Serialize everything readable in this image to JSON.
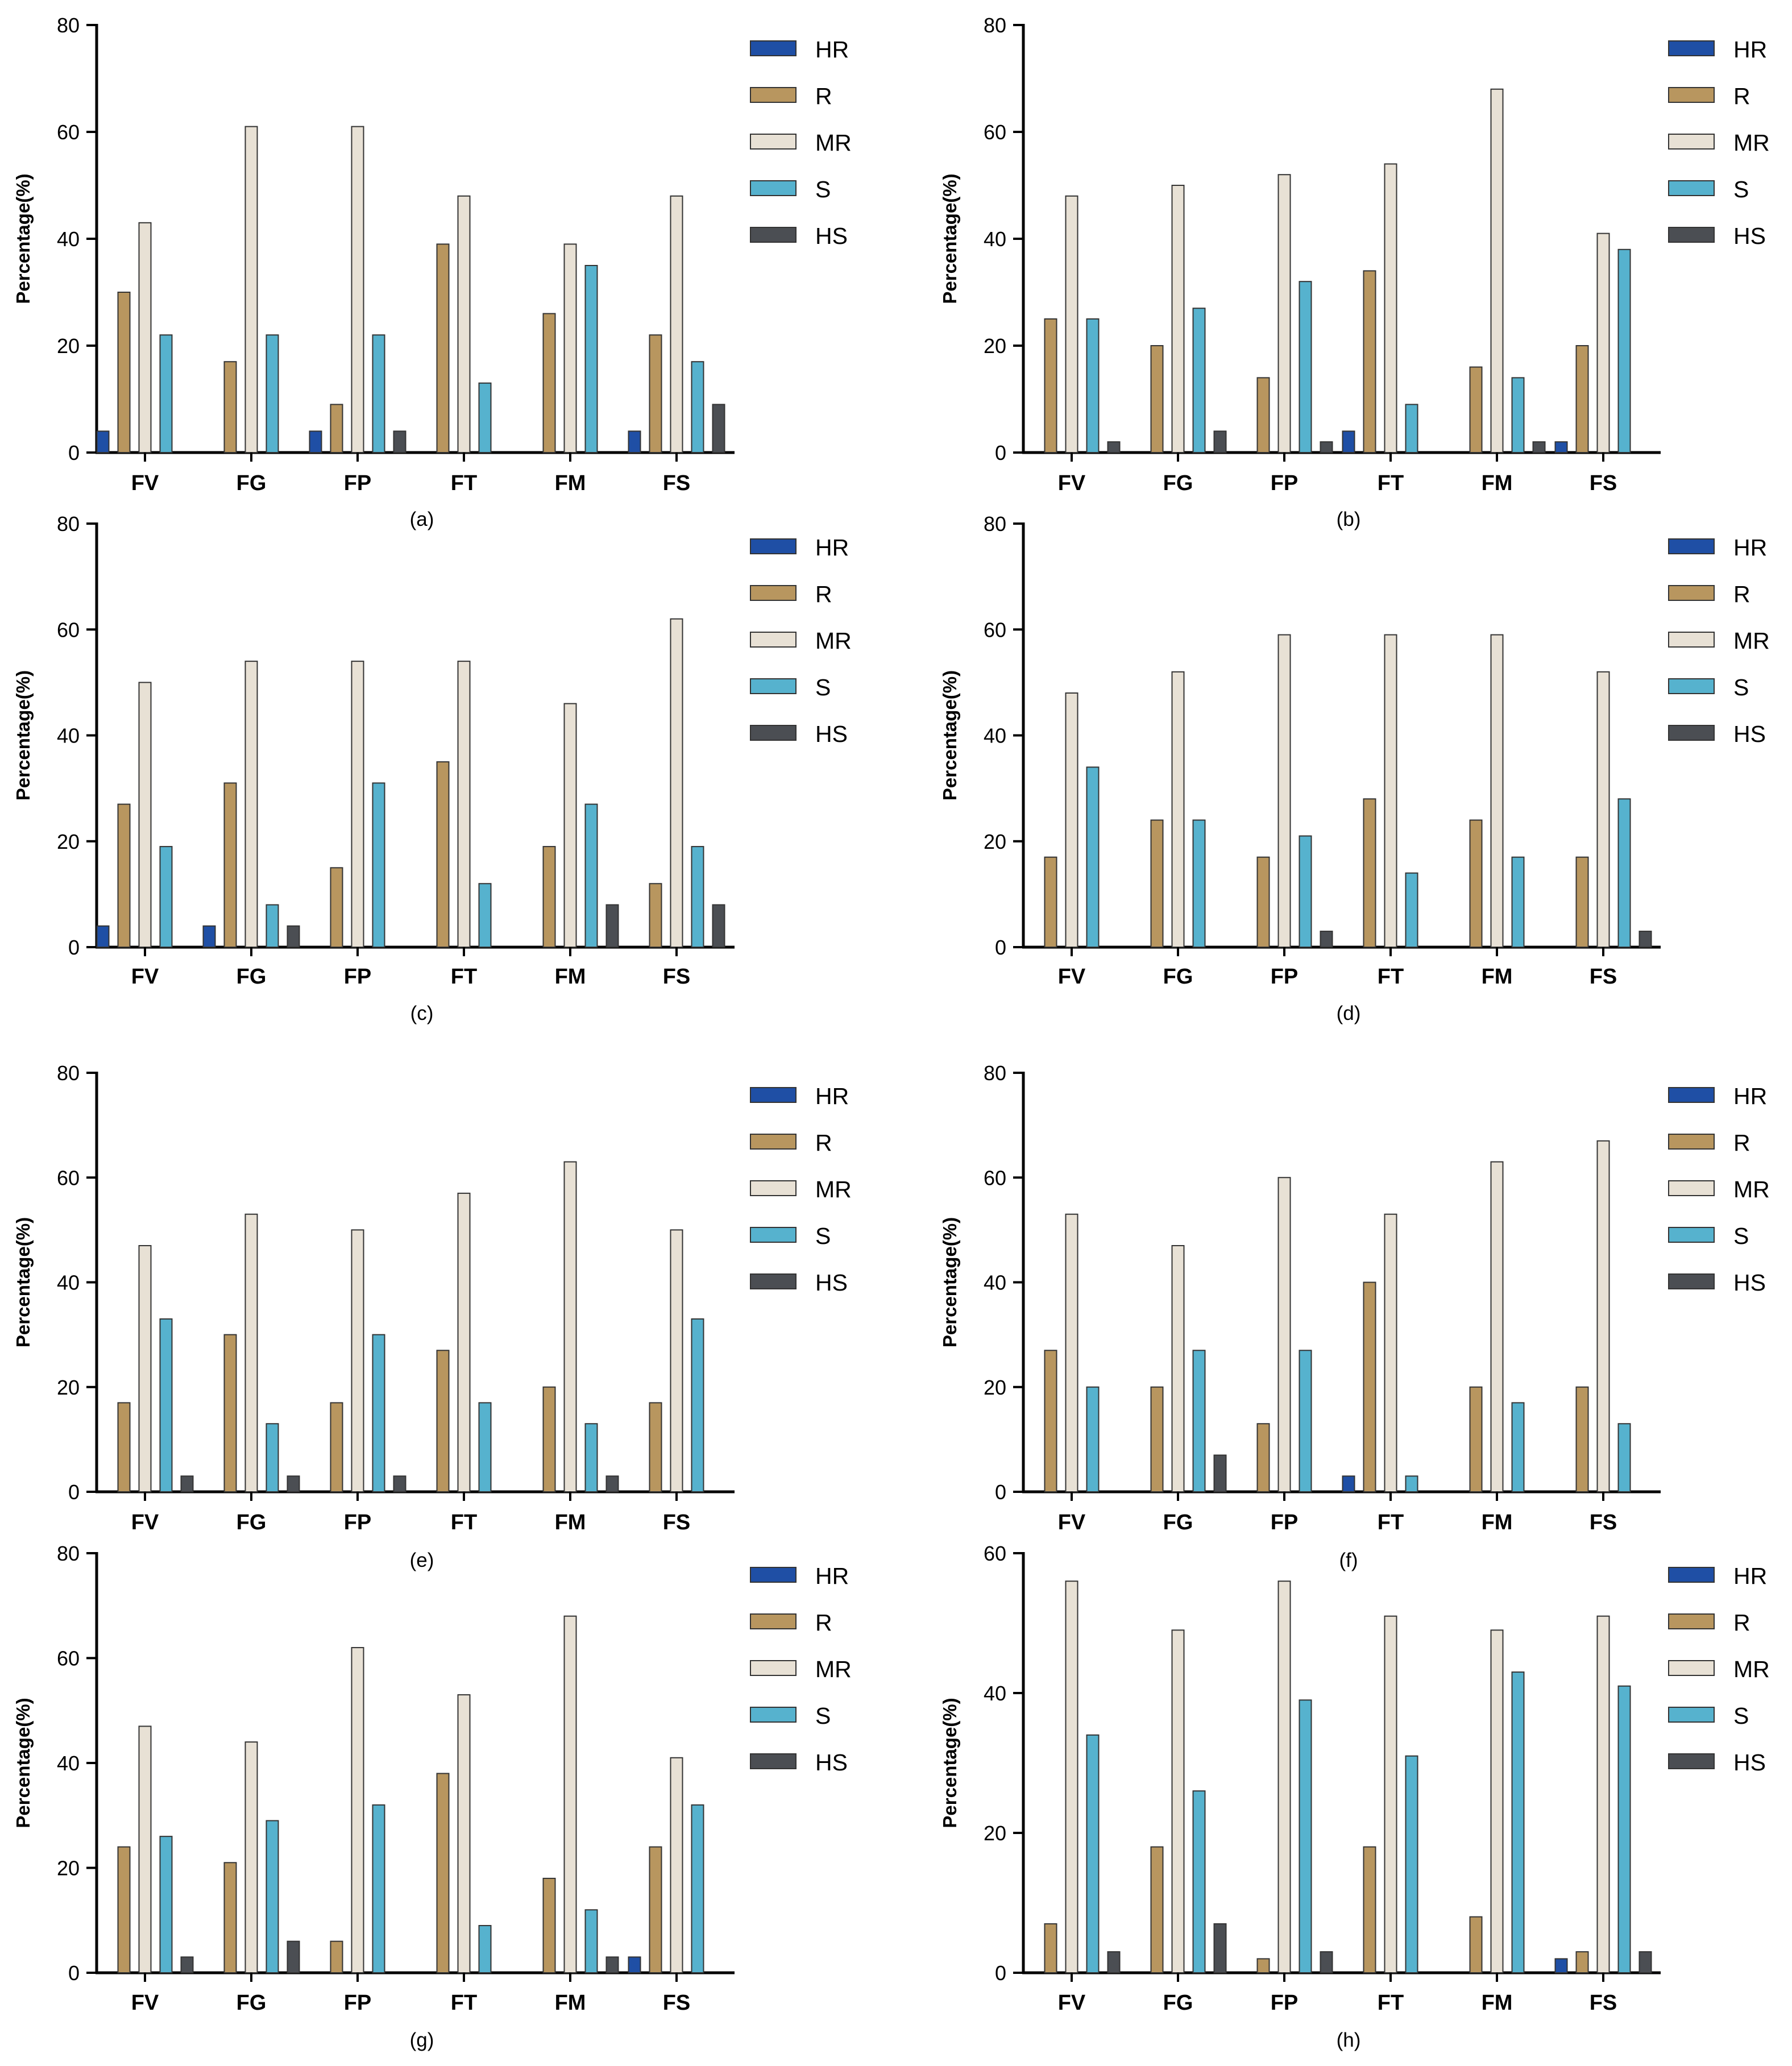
{
  "figure": {
    "legend_labels": [
      "HR",
      "R",
      "MR",
      "S",
      "HS"
    ],
    "colors": {
      "HR": "#1f4fa5",
      "R": "#b8965f",
      "MR": "#e8e1d5",
      "S": "#56b2ce",
      "HS": "#4b4e53",
      "outline": "#333333",
      "axis": "#000000"
    }
  },
  "chart_data": [
    {
      "type": "bar",
      "caption": "(a)",
      "categories": [
        "FV",
        "FG",
        "FP",
        "FT",
        "FM",
        "FS"
      ],
      "ylabel": "Percentage(%)",
      "ylim": [
        0,
        80
      ],
      "yticks": [
        0,
        20,
        40,
        60,
        80
      ],
      "legend": "top-right",
      "series": [
        {
          "name": "HR",
          "values": [
            4,
            0,
            4,
            0,
            0,
            4
          ]
        },
        {
          "name": "R",
          "values": [
            30,
            17,
            9,
            39,
            26,
            22
          ]
        },
        {
          "name": "MR",
          "values": [
            43,
            61,
            61,
            48,
            39,
            48
          ]
        },
        {
          "name": "S",
          "values": [
            22,
            22,
            22,
            13,
            35,
            17
          ]
        },
        {
          "name": "HS",
          "values": [
            0,
            0,
            4,
            0,
            0,
            9
          ]
        }
      ]
    },
    {
      "type": "bar",
      "caption": "(b)",
      "categories": [
        "FV",
        "FG",
        "FP",
        "FT",
        "FM",
        "FS"
      ],
      "ylabel": "Percentage(%)",
      "ylim": [
        0,
        80
      ],
      "yticks": [
        0,
        20,
        40,
        60,
        80
      ],
      "legend": "top-right",
      "series": [
        {
          "name": "HR",
          "values": [
            0,
            0,
            0,
            4,
            0,
            2
          ]
        },
        {
          "name": "R",
          "values": [
            25,
            20,
            14,
            34,
            16,
            20
          ]
        },
        {
          "name": "MR",
          "values": [
            48,
            50,
            52,
            54,
            68,
            41
          ]
        },
        {
          "name": "S",
          "values": [
            25,
            27,
            32,
            9,
            14,
            38
          ]
        },
        {
          "name": "HS",
          "values": [
            2,
            4,
            2,
            0,
            2,
            0
          ]
        }
      ]
    },
    {
      "type": "bar",
      "caption": "(c)",
      "categories": [
        "FV",
        "FG",
        "FP",
        "FT",
        "FM",
        "FS"
      ],
      "ylabel": "Percentage(%)",
      "ylim": [
        0,
        80
      ],
      "yticks": [
        0,
        20,
        40,
        60,
        80
      ],
      "legend": "top-right",
      "series": [
        {
          "name": "HR",
          "values": [
            4,
            4,
            0,
            0,
            0,
            0
          ]
        },
        {
          "name": "R",
          "values": [
            27,
            31,
            15,
            35,
            19,
            12
          ]
        },
        {
          "name": "MR",
          "values": [
            50,
            54,
            54,
            54,
            46,
            62
          ]
        },
        {
          "name": "S",
          "values": [
            19,
            8,
            31,
            12,
            27,
            19
          ]
        },
        {
          "name": "HS",
          "values": [
            0,
            4,
            0,
            0,
            8,
            8
          ]
        }
      ]
    },
    {
      "type": "bar",
      "caption": "(d)",
      "categories": [
        "FV",
        "FG",
        "FP",
        "FT",
        "FM",
        "FS"
      ],
      "ylabel": "Percentage(%)",
      "ylim": [
        0,
        80
      ],
      "yticks": [
        0,
        20,
        40,
        60,
        80
      ],
      "legend": "top-right",
      "series": [
        {
          "name": "HR",
          "values": [
            0,
            0,
            0,
            0,
            0,
            0
          ]
        },
        {
          "name": "R",
          "values": [
            17,
            24,
            17,
            28,
            24,
            17
          ]
        },
        {
          "name": "MR",
          "values": [
            48,
            52,
            59,
            59,
            59,
            52
          ]
        },
        {
          "name": "S",
          "values": [
            34,
            24,
            21,
            14,
            17,
            28
          ]
        },
        {
          "name": "HS",
          "values": [
            0,
            0,
            3,
            0,
            0,
            3
          ]
        }
      ]
    },
    {
      "type": "bar",
      "caption": "(e)",
      "categories": [
        "FV",
        "FG",
        "FP",
        "FT",
        "FM",
        "FS"
      ],
      "ylabel": "Percentage(%)",
      "ylim": [
        0,
        80
      ],
      "yticks": [
        0,
        20,
        40,
        60,
        80
      ],
      "legend": "top-right",
      "series": [
        {
          "name": "HR",
          "values": [
            0,
            0,
            0,
            0,
            0,
            0
          ]
        },
        {
          "name": "R",
          "values": [
            17,
            30,
            17,
            27,
            20,
            17
          ]
        },
        {
          "name": "MR",
          "values": [
            47,
            53,
            50,
            57,
            63,
            50
          ]
        },
        {
          "name": "S",
          "values": [
            33,
            13,
            30,
            17,
            13,
            33
          ]
        },
        {
          "name": "HS",
          "values": [
            3,
            3,
            3,
            0,
            3,
            0
          ]
        }
      ]
    },
    {
      "type": "bar",
      "caption": "(f)",
      "categories": [
        "FV",
        "FG",
        "FP",
        "FT",
        "FM",
        "FS"
      ],
      "ylabel": "Percentage(%)",
      "ylim": [
        0,
        80
      ],
      "yticks": [
        0,
        20,
        40,
        60,
        80
      ],
      "legend": "top-right",
      "series": [
        {
          "name": "HR",
          "values": [
            0,
            0,
            0,
            3,
            0,
            0
          ]
        },
        {
          "name": "R",
          "values": [
            27,
            20,
            13,
            40,
            20,
            20
          ]
        },
        {
          "name": "MR",
          "values": [
            53,
            47,
            60,
            53,
            63,
            67
          ]
        },
        {
          "name": "S",
          "values": [
            20,
            27,
            27,
            3,
            17,
            13
          ]
        },
        {
          "name": "HS",
          "values": [
            0,
            7,
            0,
            0,
            0,
            0
          ]
        }
      ]
    },
    {
      "type": "bar",
      "caption": "(g)",
      "categories": [
        "FV",
        "FG",
        "FP",
        "FT",
        "FM",
        "FS"
      ],
      "ylabel": "Percentage(%)",
      "ylim": [
        0,
        80
      ],
      "yticks": [
        0,
        20,
        40,
        60,
        80
      ],
      "legend": "top-right",
      "series": [
        {
          "name": "HR",
          "values": [
            0,
            0,
            0,
            0,
            0,
            3
          ]
        },
        {
          "name": "R",
          "values": [
            24,
            21,
            6,
            38,
            18,
            24
          ]
        },
        {
          "name": "MR",
          "values": [
            47,
            44,
            62,
            53,
            68,
            41
          ]
        },
        {
          "name": "S",
          "values": [
            26,
            29,
            32,
            9,
            12,
            32
          ]
        },
        {
          "name": "HS",
          "values": [
            3,
            6,
            0,
            0,
            3,
            0
          ]
        }
      ]
    },
    {
      "type": "bar",
      "caption": "(h)",
      "categories": [
        "FV",
        "FG",
        "FP",
        "FT",
        "FM",
        "FS"
      ],
      "ylabel": "Percentage(%)",
      "ylim": [
        0,
        60
      ],
      "yticks": [
        0,
        20,
        40,
        60
      ],
      "legend": "top-right",
      "series": [
        {
          "name": "HR",
          "values": [
            0,
            0,
            0,
            0,
            0,
            2
          ]
        },
        {
          "name": "R",
          "values": [
            7,
            18,
            2,
            18,
            8,
            3
          ]
        },
        {
          "name": "MR",
          "values": [
            56,
            49,
            56,
            51,
            49,
            51
          ]
        },
        {
          "name": "S",
          "values": [
            34,
            26,
            39,
            31,
            43,
            41
          ]
        },
        {
          "name": "HS",
          "values": [
            3,
            7,
            3,
            0,
            0,
            3
          ]
        }
      ]
    }
  ]
}
